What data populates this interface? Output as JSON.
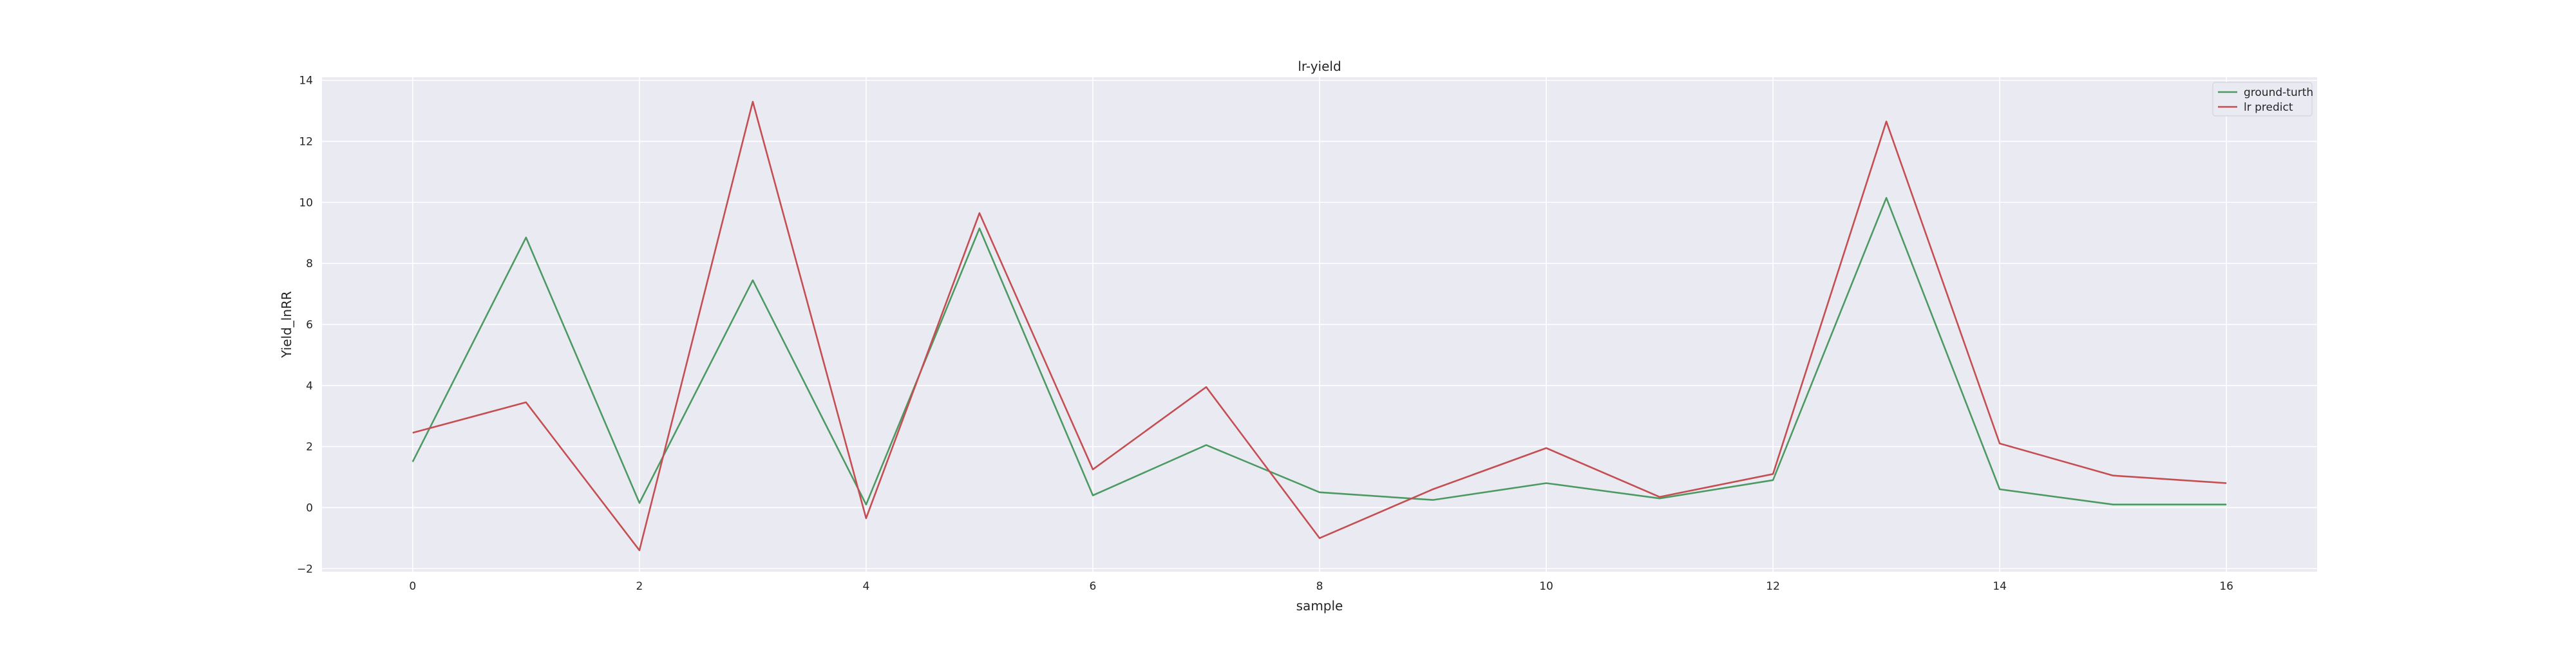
{
  "chart_data": {
    "type": "line",
    "title": "lr-yield",
    "xlabel": "sample",
    "ylabel": "Yield_lnRR",
    "x": [
      0,
      1,
      2,
      3,
      4,
      5,
      6,
      7,
      8,
      9,
      10,
      11,
      12,
      13,
      14,
      15,
      16
    ],
    "xlim": [
      -0.8,
      16.8
    ],
    "ylim": [
      -2.1,
      14.1
    ],
    "xticks": [
      0,
      2,
      4,
      6,
      8,
      10,
      12,
      14,
      16
    ],
    "yticks": [
      -2,
      0,
      2,
      4,
      6,
      8,
      10,
      12,
      14
    ],
    "xtick_labels": [
      "0",
      "2",
      "4",
      "6",
      "8",
      "10",
      "12",
      "14",
      "16"
    ],
    "ytick_labels": [
      "−2",
      "0",
      "2",
      "4",
      "6",
      "8",
      "10",
      "12",
      "14"
    ],
    "grid": true,
    "legend_position": "top-right",
    "colors": {
      "plot_background": "#eaeaf2",
      "grid": "#ffffff"
    },
    "series": [
      {
        "name": "ground-turth",
        "color": "#4c9a62",
        "values": [
          1.5,
          8.85,
          0.15,
          7.45,
          0.1,
          9.15,
          0.4,
          2.05,
          0.5,
          0.25,
          0.8,
          0.3,
          0.9,
          10.15,
          0.6,
          0.1,
          0.1
        ]
      },
      {
        "name": "lr predict",
        "color": "#c44e52",
        "values": [
          2.45,
          3.45,
          -1.4,
          13.3,
          -0.35,
          9.65,
          1.25,
          3.95,
          -1.0,
          0.6,
          1.95,
          0.35,
          1.1,
          12.65,
          2.1,
          1.05,
          0.8
        ]
      }
    ]
  }
}
